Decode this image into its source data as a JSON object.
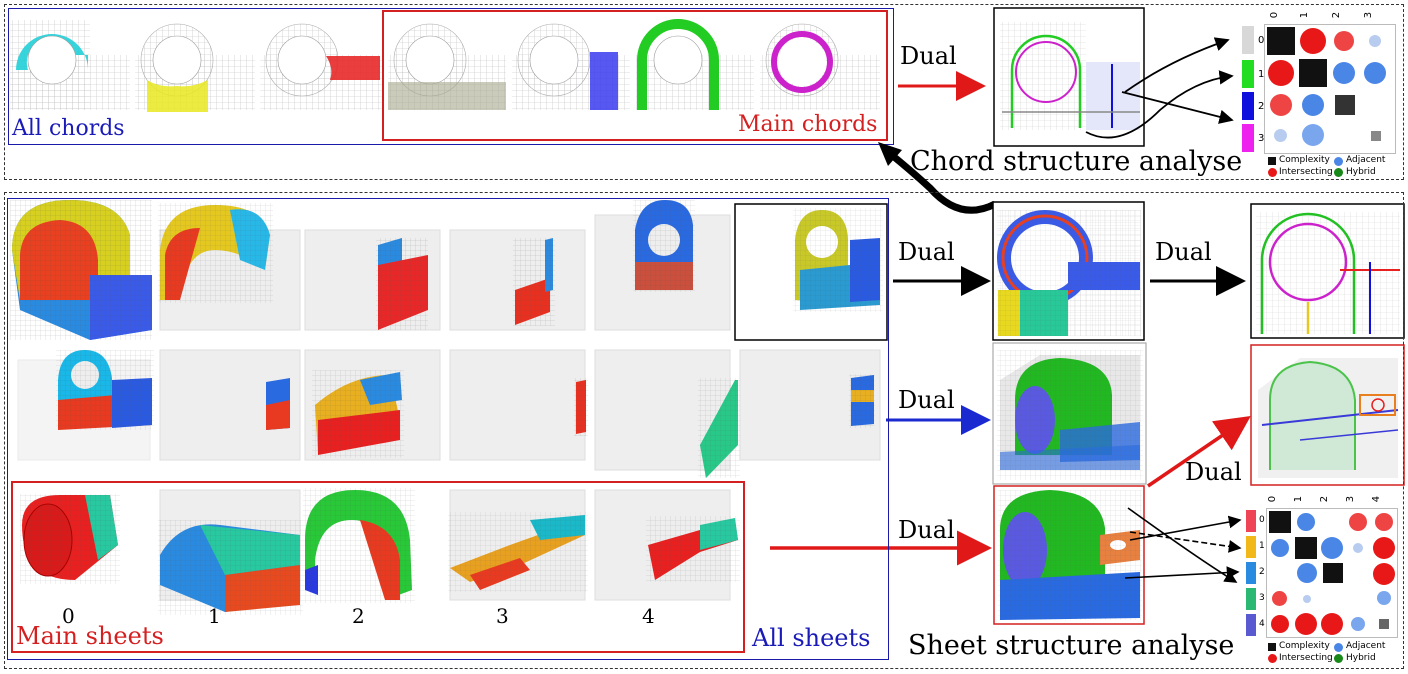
{
  "top_panel": {
    "all_chords_label": "All chords",
    "main_chords_label": "Main chords",
    "dual_label": "Dual",
    "analysis_label": "Chord structure analyse",
    "matrix": {
      "col_headers": [
        "0",
        "1",
        "2",
        "3"
      ],
      "row_headers": [
        "0",
        "1",
        "2",
        "3"
      ],
      "row_colors": [
        "#d8d8d8",
        "#22dd22",
        "#1010dd",
        "#ee22ee"
      ],
      "legend": {
        "complexity": "Complexity",
        "adjacent": "Adjacent",
        "intersecting": "Intersecting",
        "hybrid": "Hybrid"
      }
    }
  },
  "bottom_panel": {
    "main_sheets_label": "Main sheets",
    "all_sheets_label": "All sheets",
    "sheet_numbers": [
      "0",
      "1",
      "2",
      "3",
      "4"
    ],
    "dual_label_1": "Dual",
    "dual_label_2": "Dual",
    "dual_label_3": "Dual",
    "dual_label_4": "Dual",
    "dual_label_5": "Dual",
    "analysis_label": "Sheet structure analyse",
    "matrix": {
      "col_headers": [
        "0",
        "1",
        "2",
        "3",
        "4"
      ],
      "row_headers": [
        "0",
        "1",
        "2",
        "3",
        "4"
      ],
      "row_colors": [
        "#ee4455",
        "#f2b81a",
        "#2a8ae0",
        "#2ab872",
        "#5a5ad0"
      ],
      "legend": {
        "complexity": "Complexity",
        "adjacent": "Adjacent",
        "intersecting": "Intersecting",
        "hybrid": "Hybrid"
      }
    }
  },
  "colors": {
    "all_box": "#1a1aa8",
    "main_box": "#d42020",
    "label_blue": "#1a1ab8",
    "label_red": "#d42020",
    "arrow_red": "#e01818",
    "arrow_blue": "#1a2ad0",
    "complexity": "#111111",
    "adjacent": "#4a86e6",
    "intersecting": "#e81818",
    "hybrid": "#188818"
  }
}
